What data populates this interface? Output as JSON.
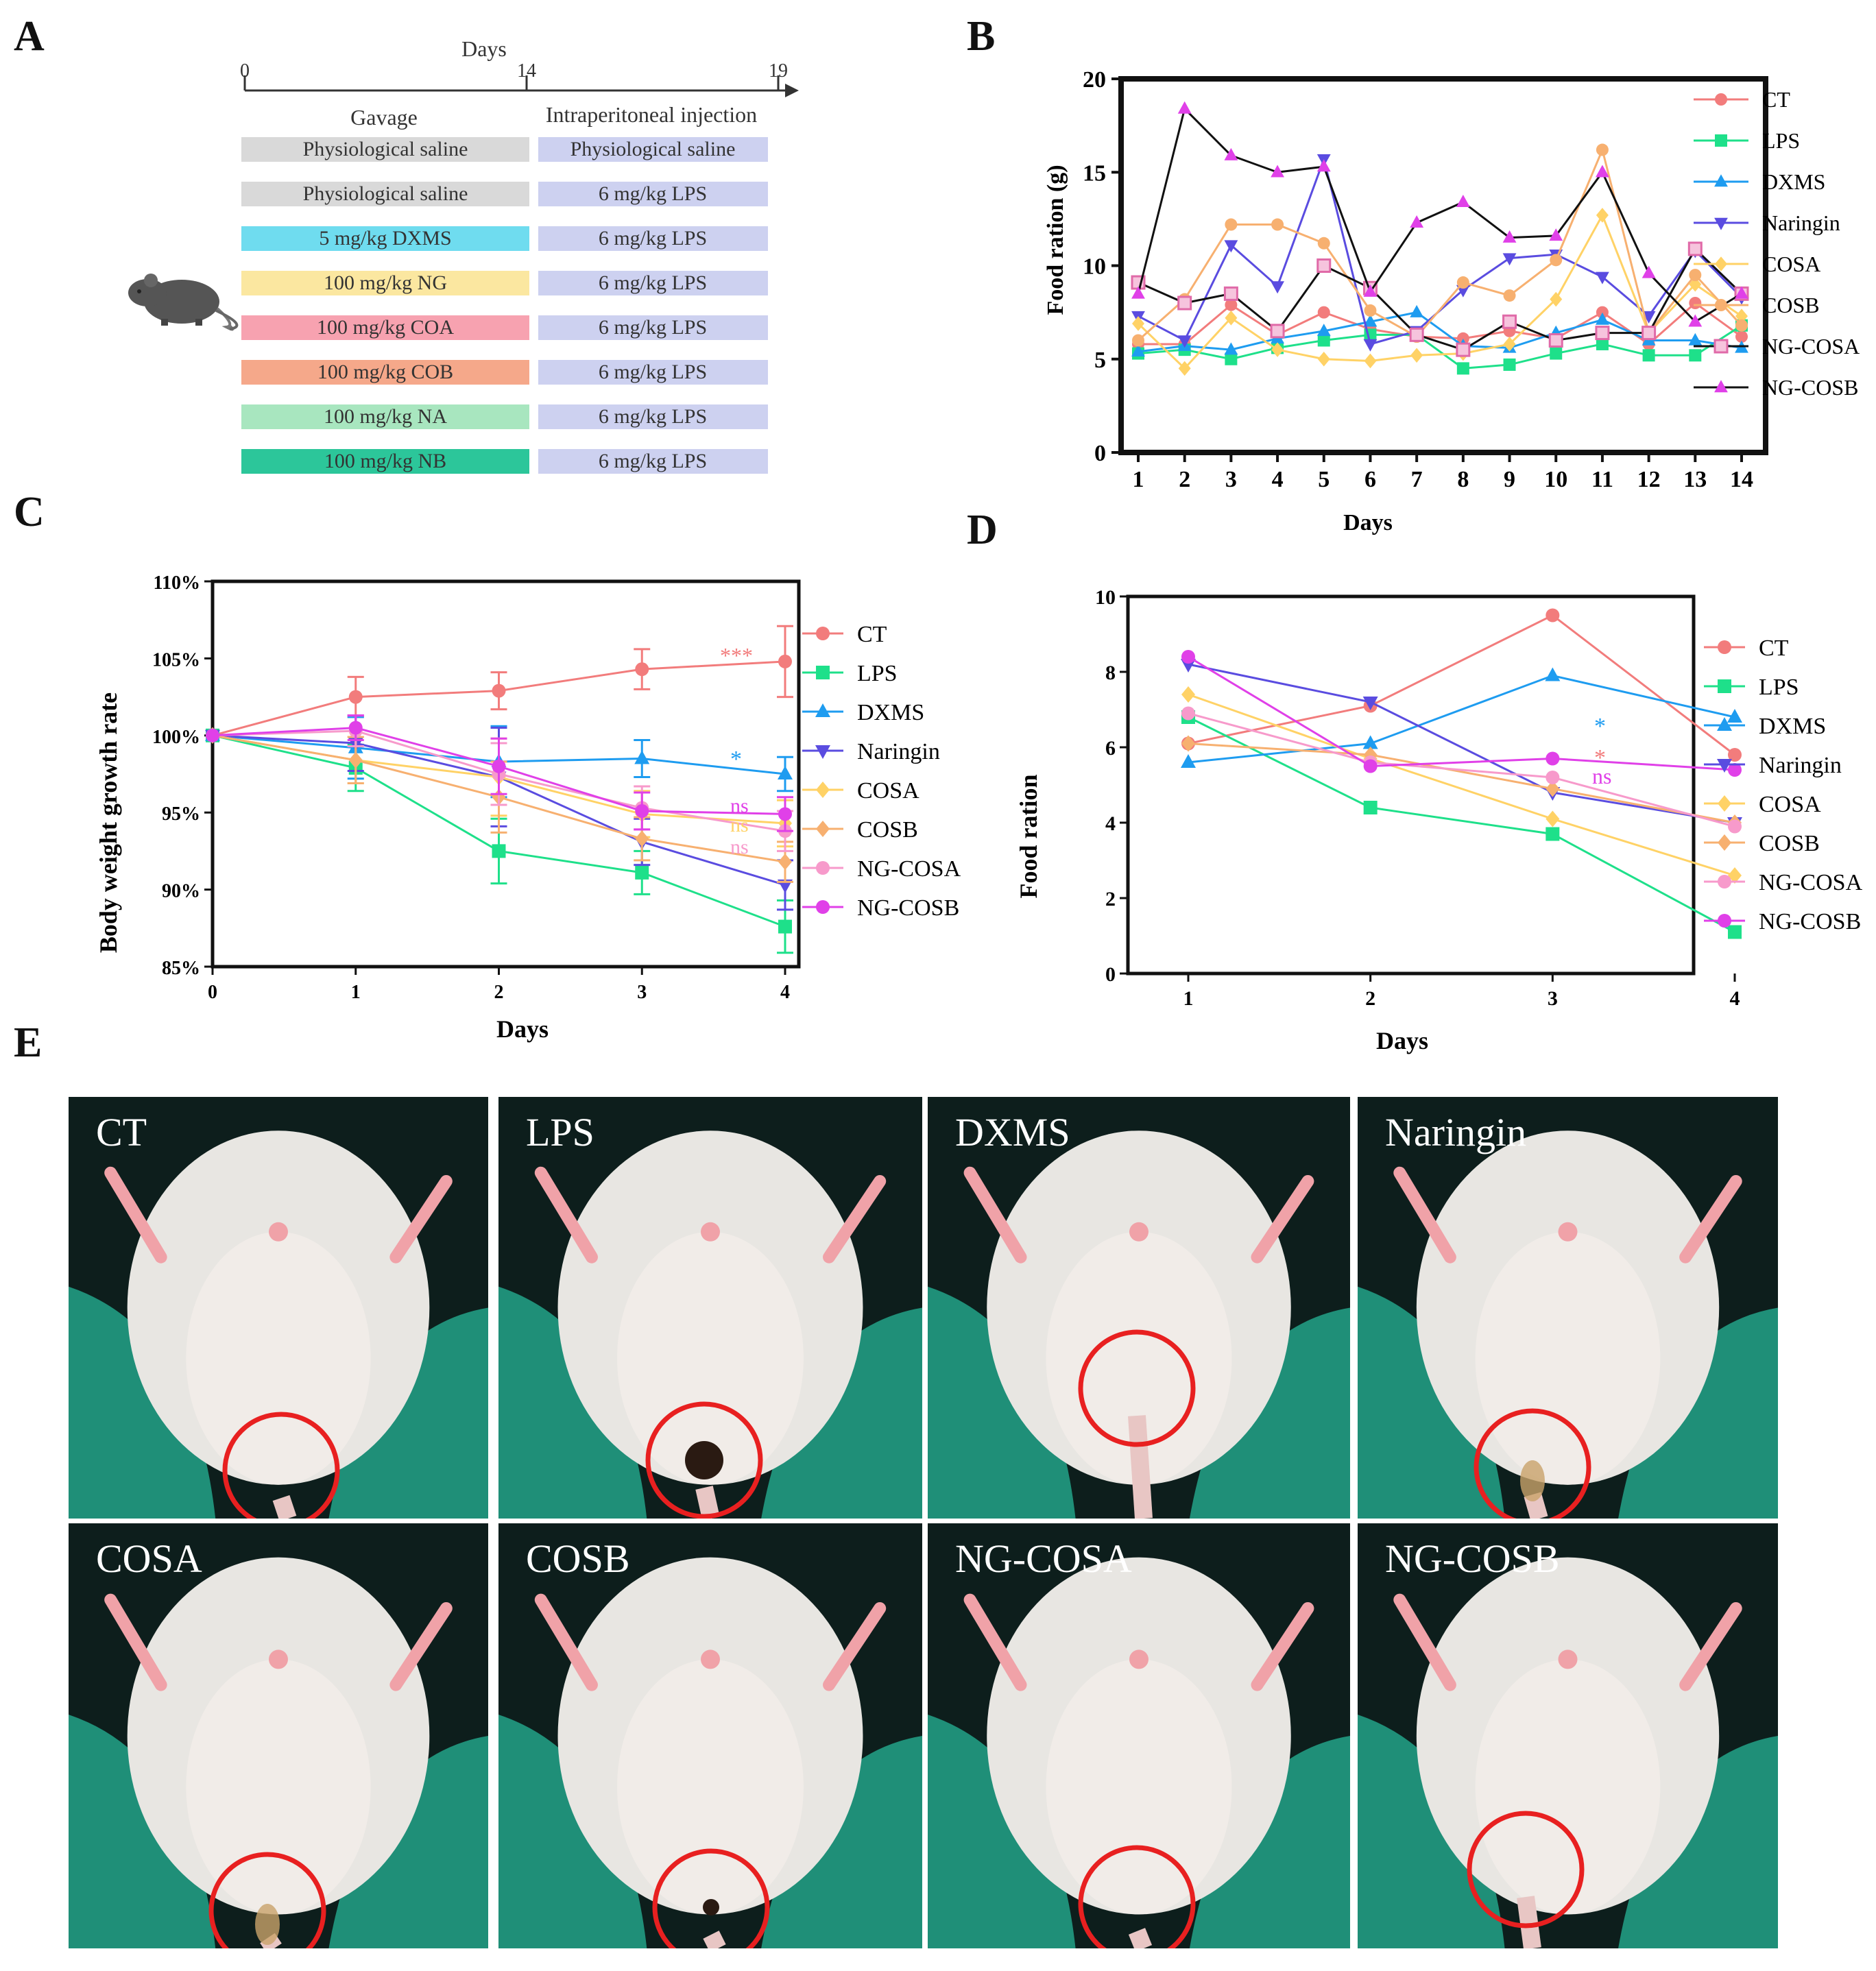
{
  "panels": {
    "A": "A",
    "B": "B",
    "C": "C",
    "D": "D",
    "E": "E"
  },
  "colors": {
    "CT": "#f27c7c",
    "LPS": "#1ee08a",
    "DXMS": "#1e9cf0",
    "Naringin": "#5a4ce0",
    "COSA": "#ffd266",
    "COSB": "#f7b070",
    "NG-COSA": "#f79acb",
    "NG-COSB": "#e040e8",
    "black": "#111111"
  },
  "schedule": {
    "axis_title": "Days",
    "ticks": [
      "0",
      "14",
      "19"
    ],
    "col1_header": "Gavage",
    "col2_header": "Intraperitoneal injection",
    "rows": [
      {
        "gavage": "Physiological saline",
        "injection": "Physiological saline",
        "color": "#d9d9d9"
      },
      {
        "gavage": "Physiological saline",
        "injection": "6 mg/kg LPS",
        "color": "#d9d9d9"
      },
      {
        "gavage": "5 mg/kg DXMS",
        "injection": "6 mg/kg LPS",
        "color": "#6fdcef"
      },
      {
        "gavage": "100 mg/kg NG",
        "injection": "6 mg/kg LPS",
        "color": "#fbe7a0"
      },
      {
        "gavage": "100 mg/kg COA",
        "injection": "6 mg/kg LPS",
        "color": "#f7a2b0"
      },
      {
        "gavage": "100 mg/kg COB",
        "injection": "6 mg/kg LPS",
        "color": "#f5a88a"
      },
      {
        "gavage": "100 mg/kg NA",
        "injection": "6 mg/kg LPS",
        "color": "#a8e6bf"
      },
      {
        "gavage": "100 mg/kg NB",
        "injection": "6 mg/kg LPS",
        "color": "#2cc69a"
      }
    ]
  },
  "chart_data": [
    {
      "id": "B",
      "type": "line",
      "title": "",
      "xlabel": "Days",
      "ylabel": "Food ration (g)",
      "x": [
        1,
        2,
        3,
        4,
        5,
        6,
        7,
        8,
        9,
        10,
        11,
        12,
        13,
        14
      ],
      "ylim": [
        0,
        20
      ],
      "yticks": [
        0,
        5,
        10,
        15,
        20
      ],
      "series": [
        {
          "name": "CT",
          "marker": "circle",
          "values": [
            5.8,
            5.8,
            7.9,
            6.3,
            7.5,
            6.6,
            6.2,
            6.1,
            6.5,
            6.1,
            7.5,
            5.8,
            8.0,
            6.2
          ]
        },
        {
          "name": "LPS",
          "marker": "square",
          "values": [
            5.3,
            5.5,
            5.0,
            5.6,
            6.0,
            6.3,
            6.3,
            4.5,
            4.7,
            5.3,
            5.8,
            5.2,
            5.2,
            6.8
          ]
        },
        {
          "name": "DXMS",
          "marker": "triangle",
          "values": [
            5.4,
            5.7,
            5.5,
            6.1,
            6.5,
            7.0,
            7.5,
            5.7,
            5.6,
            6.4,
            7.1,
            6.0,
            6.0,
            5.6
          ]
        },
        {
          "name": "Naringin",
          "marker": "triangle-down",
          "values": [
            7.3,
            6.0,
            11.1,
            8.9,
            15.7,
            5.8,
            6.5,
            8.7,
            10.4,
            10.6,
            9.4,
            7.3,
            10.8,
            8.3
          ]
        },
        {
          "name": "COSA",
          "marker": "diamond",
          "values": [
            6.9,
            4.5,
            7.2,
            5.5,
            5.0,
            4.9,
            5.2,
            5.3,
            5.8,
            8.2,
            12.7,
            6.4,
            9.0,
            7.3
          ]
        },
        {
          "name": "COSB",
          "marker": "hexagon",
          "values": [
            6.0,
            8.2,
            12.2,
            12.2,
            11.2,
            7.6,
            6.2,
            9.1,
            8.4,
            10.3,
            16.2,
            6.4,
            9.5,
            6.8
          ]
        },
        {
          "name": "NG-COSA",
          "marker": "square-open",
          "values": [
            9.1,
            8.0,
            8.5,
            6.5,
            10.0,
            8.8,
            6.3,
            5.5,
            7.0,
            6.0,
            6.4,
            6.4,
            10.9,
            8.5
          ]
        },
        {
          "name": "NG-COSB",
          "marker": "triangle",
          "values": [
            8.5,
            18.4,
            15.9,
            15.0,
            15.3,
            8.6,
            12.3,
            13.4,
            11.5,
            11.6,
            15.0,
            9.6,
            7.0,
            8.5
          ]
        }
      ]
    },
    {
      "id": "C",
      "type": "line",
      "title": "",
      "xlabel": "Days",
      "ylabel": "Body weight growth rate",
      "x": [
        0,
        1,
        2,
        3,
        4
      ],
      "ylim": [
        85,
        110
      ],
      "yticks": [
        85,
        90,
        95,
        100,
        105,
        110
      ],
      "yticklabels": [
        "85%",
        "90%",
        "95%",
        "100%",
        "105%",
        "110%"
      ],
      "series": [
        {
          "name": "CT",
          "marker": "circle",
          "values": [
            100,
            102.5,
            102.9,
            104.3,
            104.8
          ],
          "errors": [
            0,
            1.3,
            1.2,
            1.3,
            2.3
          ],
          "sig": "***"
        },
        {
          "name": "LPS",
          "marker": "square",
          "values": [
            100,
            97.9,
            92.5,
            91.1,
            87.6
          ],
          "errors": [
            0,
            1.5,
            2.1,
            1.4,
            1.7
          ],
          "sig": ""
        },
        {
          "name": "DXMS",
          "marker": "triangle",
          "values": [
            100,
            99.2,
            98.3,
            98.5,
            97.5
          ],
          "errors": [
            0,
            2.0,
            2.3,
            1.2,
            1.1
          ],
          "sig": "*"
        },
        {
          "name": "Naringin",
          "marker": "triangle-down",
          "values": [
            100,
            99.5,
            97.3,
            93.1,
            90.3
          ],
          "errors": [
            0,
            1.8,
            3.2,
            1.5,
            1.6
          ],
          "sig": ""
        },
        {
          "name": "COSA",
          "marker": "diamond",
          "values": [
            100,
            98.4,
            97.3,
            94.9,
            94.3
          ],
          "errors": [
            0,
            1.5,
            2.5,
            1.5,
            1.5
          ],
          "sig": "ns"
        },
        {
          "name": "COSB",
          "marker": "diamond",
          "values": [
            100,
            98.4,
            96.0,
            93.3,
            91.8
          ],
          "errors": [
            0,
            1.5,
            2.3,
            1.4,
            1.3
          ],
          "sig": "ns"
        },
        {
          "name": "NG-COSA",
          "marker": "circle",
          "values": [
            100,
            100.3,
            97.5,
            95.3,
            93.8
          ],
          "errors": [
            0,
            1.0,
            2.0,
            1.4,
            1.3
          ],
          "sig": "ns"
        },
        {
          "name": "NG-COSB",
          "marker": "circle",
          "values": [
            100,
            100.5,
            98.0,
            95.1,
            94.9
          ],
          "errors": [
            0,
            0.8,
            1.8,
            1.2,
            1.1
          ],
          "sig": "ns"
        }
      ]
    },
    {
      "id": "D",
      "type": "line",
      "title": "",
      "xlabel": "Days",
      "ylabel": "Food ration",
      "x": [
        1,
        2,
        3,
        4
      ],
      "ylim": [
        0,
        10
      ],
      "yticks": [
        0,
        2,
        4,
        6,
        8,
        10
      ],
      "series": [
        {
          "name": "CT",
          "marker": "circle",
          "values": [
            6.1,
            7.1,
            9.5,
            5.8
          ],
          "sig": "*"
        },
        {
          "name": "LPS",
          "marker": "square",
          "values": [
            6.8,
            4.4,
            3.7,
            1.1
          ],
          "sig": ""
        },
        {
          "name": "DXMS",
          "marker": "triangle",
          "values": [
            5.6,
            6.1,
            7.9,
            6.8
          ],
          "sig": "*"
        },
        {
          "name": "Naringin",
          "marker": "triangle-down",
          "values": [
            8.2,
            7.2,
            4.8,
            4.0
          ],
          "sig": ""
        },
        {
          "name": "COSA",
          "marker": "diamond",
          "values": [
            7.4,
            5.7,
            4.1,
            2.6
          ],
          "sig": ""
        },
        {
          "name": "COSB",
          "marker": "diamond",
          "values": [
            6.1,
            5.8,
            4.9,
            4.0
          ],
          "sig": ""
        },
        {
          "name": "NG-COSA",
          "marker": "circle",
          "values": [
            6.9,
            5.6,
            5.2,
            3.9
          ],
          "sig": ""
        },
        {
          "name": "NG-COSB",
          "marker": "circle",
          "values": [
            8.4,
            5.5,
            5.7,
            5.4
          ],
          "sig": "ns"
        }
      ]
    }
  ],
  "photos": [
    "CT",
    "LPS",
    "DXMS",
    "Naringin",
    "COSA",
    "COSB",
    "NG-COSA",
    "NG-COSB"
  ]
}
